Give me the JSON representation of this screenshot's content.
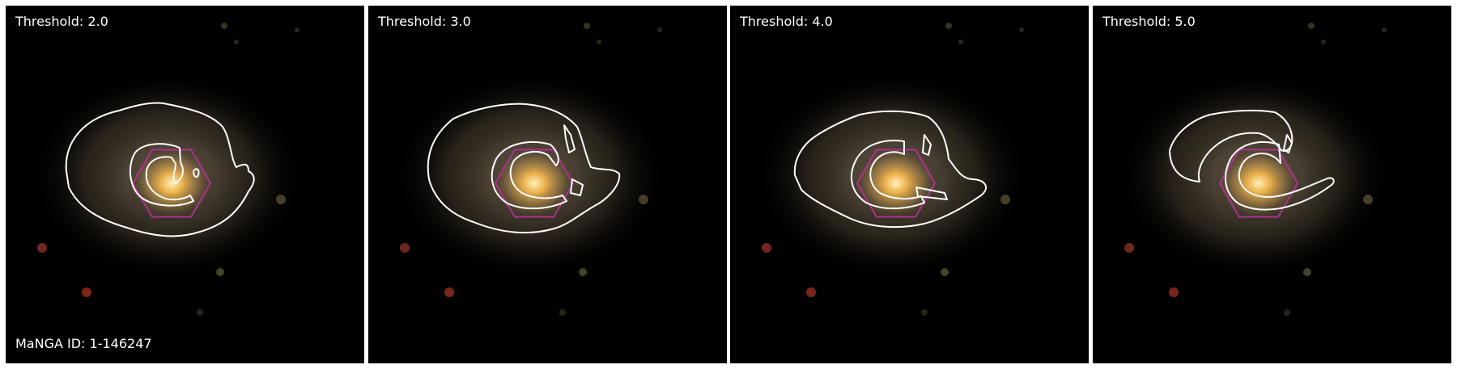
{
  "panels": [
    {
      "threshold_label": "Threshold: 2.0",
      "id_label": "MaNGA ID: 1-146247"
    },
    {
      "threshold_label": "Threshold: 3.0"
    },
    {
      "threshold_label": "Threshold: 4.0"
    },
    {
      "threshold_label": "Threshold: 5.0"
    }
  ],
  "colors": {
    "background": "#000000",
    "contour": "#ffffff",
    "hexagon": "#b0308f",
    "galaxy_core": "#f2b54a",
    "galaxy_halo": "#8a7a5a"
  }
}
